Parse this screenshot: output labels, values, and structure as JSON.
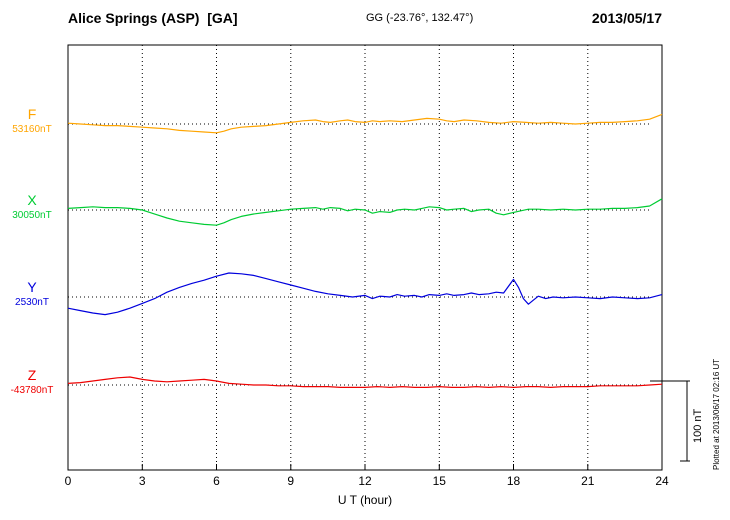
{
  "header": {
    "station": "Alice Springs (ASP)  [GA]",
    "coords": "GG (-23.76°, 132.47°)",
    "date": "2013/05/17"
  },
  "scale_bar_label": "100 nT",
  "side_note": "Plotted at 2013/06/17 02:16 UT",
  "chart_data": {
    "type": "line",
    "title": "Alice Springs (ASP) [GA] magnetogram 2013/05/17",
    "xlabel": "U T (hour)",
    "x_range": [
      0,
      24
    ],
    "x_ticks": [
      0,
      3,
      6,
      9,
      12,
      15,
      18,
      21,
      24
    ],
    "grid": "vertical-dotted-every-3h",
    "scale_bar_nT": 100,
    "units": "nT",
    "series": [
      {
        "name": "F",
        "baseline_label": "53160nT",
        "baseline_nT": 53160,
        "color": "#FFA500",
        "points": [
          [
            0,
            1
          ],
          [
            0.5,
            0
          ],
          [
            1,
            -1
          ],
          [
            1.5,
            -2
          ],
          [
            2,
            -2
          ],
          [
            2.5,
            -3
          ],
          [
            3,
            -4
          ],
          [
            3.5,
            -5
          ],
          [
            4,
            -6
          ],
          [
            4.5,
            -8
          ],
          [
            5,
            -9
          ],
          [
            5.5,
            -10
          ],
          [
            6,
            -11
          ],
          [
            6.3,
            -9
          ],
          [
            6.6,
            -6
          ],
          [
            7,
            -4
          ],
          [
            7.5,
            -3
          ],
          [
            8,
            -2
          ],
          [
            8.5,
            0
          ],
          [
            9,
            2
          ],
          [
            9.5,
            4
          ],
          [
            10,
            5
          ],
          [
            10.3,
            3
          ],
          [
            10.6,
            2
          ],
          [
            11,
            4
          ],
          [
            11.3,
            5
          ],
          [
            11.6,
            3
          ],
          [
            12,
            2
          ],
          [
            12.3,
            4
          ],
          [
            12.6,
            3
          ],
          [
            13,
            4
          ],
          [
            13.5,
            3
          ],
          [
            14,
            5
          ],
          [
            14.5,
            7
          ],
          [
            15,
            6
          ],
          [
            15.3,
            4
          ],
          [
            15.6,
            3
          ],
          [
            16,
            5
          ],
          [
            16.5,
            4
          ],
          [
            17,
            2
          ],
          [
            17.5,
            1
          ],
          [
            18,
            3
          ],
          [
            18.5,
            2
          ],
          [
            19,
            1
          ],
          [
            19.5,
            2
          ],
          [
            20,
            1
          ],
          [
            20.5,
            0
          ],
          [
            21,
            1
          ],
          [
            21.5,
            2
          ],
          [
            22,
            2
          ],
          [
            22.5,
            3
          ],
          [
            23,
            4
          ],
          [
            23.5,
            6
          ],
          [
            24,
            12
          ]
        ]
      },
      {
        "name": "X",
        "baseline_label": "30050nT",
        "baseline_nT": 30050,
        "color": "#00CC33",
        "points": [
          [
            0,
            2
          ],
          [
            0.5,
            3
          ],
          [
            1,
            4
          ],
          [
            1.5,
            3
          ],
          [
            2,
            3
          ],
          [
            2.5,
            2
          ],
          [
            3,
            0
          ],
          [
            3.3,
            -3
          ],
          [
            3.6,
            -6
          ],
          [
            4,
            -10
          ],
          [
            4.5,
            -14
          ],
          [
            5,
            -16
          ],
          [
            5.5,
            -18
          ],
          [
            6,
            -19
          ],
          [
            6.3,
            -16
          ],
          [
            6.6,
            -12
          ],
          [
            7,
            -8
          ],
          [
            7.5,
            -5
          ],
          [
            8,
            -3
          ],
          [
            8.5,
            -1
          ],
          [
            9,
            1
          ],
          [
            9.5,
            2
          ],
          [
            10,
            3
          ],
          [
            10.3,
            1
          ],
          [
            10.6,
            3
          ],
          [
            11,
            2
          ],
          [
            11.3,
            -1
          ],
          [
            11.6,
            1
          ],
          [
            12,
            0
          ],
          [
            12.3,
            -4
          ],
          [
            12.6,
            -2
          ],
          [
            13,
            -3
          ],
          [
            13.3,
            0
          ],
          [
            13.6,
            1
          ],
          [
            14,
            0
          ],
          [
            14.3,
            2
          ],
          [
            14.6,
            4
          ],
          [
            15,
            3
          ],
          [
            15.3,
            0
          ],
          [
            15.6,
            1
          ],
          [
            16,
            2
          ],
          [
            16.3,
            -2
          ],
          [
            16.6,
            0
          ],
          [
            17,
            1
          ],
          [
            17.3,
            -4
          ],
          [
            17.6,
            -6
          ],
          [
            18,
            -3
          ],
          [
            18.3,
            -1
          ],
          [
            18.6,
            1
          ],
          [
            19,
            1
          ],
          [
            19.5,
            0
          ],
          [
            20,
            1
          ],
          [
            20.5,
            0
          ],
          [
            21,
            1
          ],
          [
            21.5,
            1
          ],
          [
            22,
            2
          ],
          [
            22.5,
            2
          ],
          [
            23,
            3
          ],
          [
            23.5,
            5
          ],
          [
            24,
            14
          ]
        ]
      },
      {
        "name": "Y",
        "baseline_label": "2530nT",
        "baseline_nT": 2530,
        "color": "#0000DD",
        "points": [
          [
            0,
            -14
          ],
          [
            0.5,
            -17
          ],
          [
            1,
            -20
          ],
          [
            1.5,
            -22
          ],
          [
            2,
            -19
          ],
          [
            2.5,
            -14
          ],
          [
            3,
            -8
          ],
          [
            3.5,
            -2
          ],
          [
            4,
            6
          ],
          [
            4.5,
            12
          ],
          [
            5,
            17
          ],
          [
            5.5,
            21
          ],
          [
            6,
            26
          ],
          [
            6.5,
            30
          ],
          [
            7,
            29
          ],
          [
            7.5,
            27
          ],
          [
            8,
            23
          ],
          [
            8.5,
            19
          ],
          [
            9,
            15
          ],
          [
            9.5,
            11
          ],
          [
            10,
            7
          ],
          [
            10.5,
            4
          ],
          [
            11,
            2
          ],
          [
            11.5,
            0
          ],
          [
            12,
            2
          ],
          [
            12.3,
            -2
          ],
          [
            12.6,
            1
          ],
          [
            13,
            0
          ],
          [
            13.3,
            3
          ],
          [
            13.6,
            1
          ],
          [
            14,
            2
          ],
          [
            14.3,
            0
          ],
          [
            14.6,
            3
          ],
          [
            15,
            2
          ],
          [
            15.3,
            4
          ],
          [
            15.6,
            2
          ],
          [
            16,
            3
          ],
          [
            16.3,
            5
          ],
          [
            16.6,
            3
          ],
          [
            17,
            4
          ],
          [
            17.3,
            6
          ],
          [
            17.6,
            5
          ],
          [
            18,
            22
          ],
          [
            18.2,
            12
          ],
          [
            18.4,
            -2
          ],
          [
            18.6,
            -9
          ],
          [
            18.8,
            -4
          ],
          [
            19,
            1
          ],
          [
            19.3,
            -2
          ],
          [
            19.6,
            0
          ],
          [
            20,
            -1
          ],
          [
            20.5,
            0
          ],
          [
            21,
            -1
          ],
          [
            21.5,
            -2
          ],
          [
            22,
            0
          ],
          [
            22.5,
            -1
          ],
          [
            23,
            -2
          ],
          [
            23.5,
            -1
          ],
          [
            24,
            3
          ]
        ]
      },
      {
        "name": "Z",
        "baseline_label": "-43780nT",
        "baseline_nT": -43780,
        "color": "#EE0000",
        "points": [
          [
            0,
            2
          ],
          [
            0.5,
            3
          ],
          [
            1,
            5
          ],
          [
            1.5,
            7
          ],
          [
            2,
            9
          ],
          [
            2.5,
            10
          ],
          [
            3,
            7
          ],
          [
            3.5,
            5
          ],
          [
            4,
            4
          ],
          [
            4.5,
            5
          ],
          [
            5,
            6
          ],
          [
            5.5,
            7
          ],
          [
            6,
            5
          ],
          [
            6.5,
            2
          ],
          [
            7,
            1
          ],
          [
            7.5,
            0
          ],
          [
            8,
            0
          ],
          [
            8.5,
            -1
          ],
          [
            9,
            -1
          ],
          [
            9.5,
            -2
          ],
          [
            10,
            -2
          ],
          [
            10.5,
            -2
          ],
          [
            11,
            -3
          ],
          [
            11.5,
            -3
          ],
          [
            12,
            -3
          ],
          [
            12.5,
            -2
          ],
          [
            13,
            -3
          ],
          [
            13.5,
            -2
          ],
          [
            14,
            -3
          ],
          [
            14.5,
            -3
          ],
          [
            15,
            -2
          ],
          [
            15.5,
            -3
          ],
          [
            16,
            -3
          ],
          [
            16.5,
            -2
          ],
          [
            17,
            -3
          ],
          [
            17.5,
            -2
          ],
          [
            18,
            -3
          ],
          [
            18.5,
            -2
          ],
          [
            19,
            -2
          ],
          [
            19.5,
            -3
          ],
          [
            20,
            -2
          ],
          [
            20.5,
            -2
          ],
          [
            21,
            -2
          ],
          [
            21.5,
            -1
          ],
          [
            22,
            -1
          ],
          [
            22.5,
            -1
          ],
          [
            23,
            -1
          ],
          [
            23.5,
            0
          ],
          [
            24,
            1
          ]
        ]
      }
    ]
  }
}
